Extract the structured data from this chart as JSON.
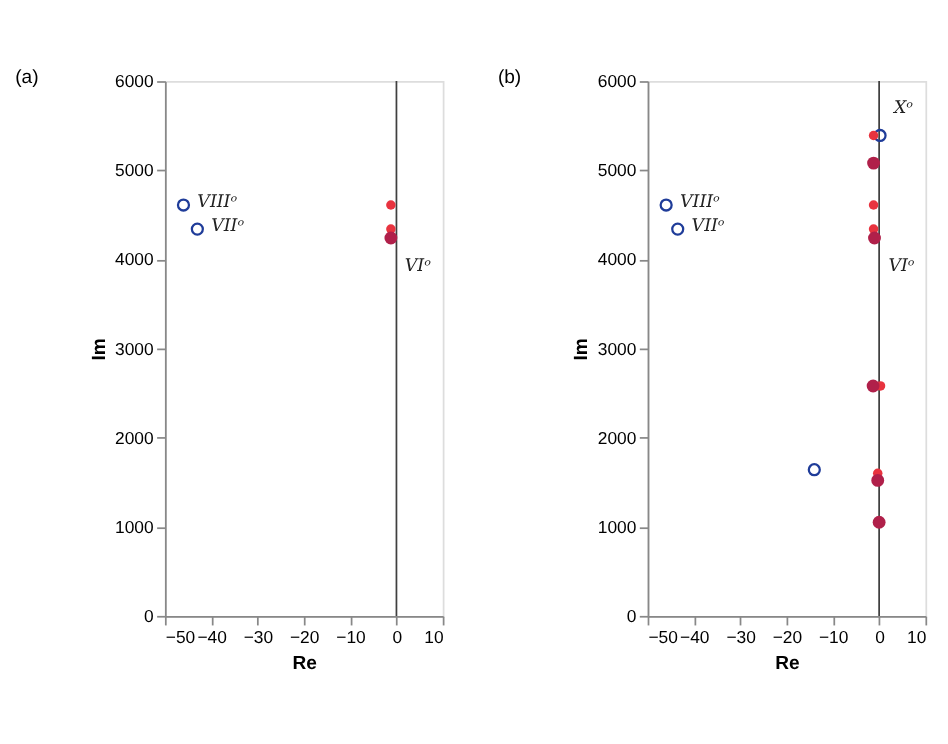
{
  "chart_data": [
    {
      "type": "scatter",
      "title": "(a)",
      "xlabel": "Re",
      "ylabel": "Im",
      "xlim": [
        -50,
        10
      ],
      "xticks": [
        -50,
        -40,
        -30,
        -20,
        -10,
        0,
        10
      ],
      "ylim": [
        0,
        6000
      ],
      "yticks": [
        0,
        1000,
        2000,
        3000,
        4000,
        5000,
        6000
      ],
      "grid": false,
      "ref_lines": [
        {
          "axis": "x",
          "value": 0,
          "color": "#404040"
        }
      ],
      "series": [
        {
          "color": "#1f3c99",
          "x": [
            -46,
            -43
          ],
          "values": [
            4610,
            4340
          ]
        },
        {
          "color": "#e8333f",
          "x": [
            -1.2,
            -1.2
          ],
          "values": [
            4610,
            4340
          ]
        },
        {
          "color": "#b0204a",
          "x": [
            -1.2
          ],
          "values": [
            4240
          ]
        }
      ],
      "annotations": [
        {
          "text": "VIIIᵒ",
          "x": -46,
          "y": 4610
        },
        {
          "text": "VIIᵒ",
          "x": -43,
          "y": 4340
        },
        {
          "text": "VIᵒ",
          "x": -1.2,
          "y": 4240
        }
      ]
    },
    {
      "type": "scatter",
      "title": "(b)",
      "xlabel": "Re",
      "ylabel": "Im",
      "xlim": [
        -50,
        10
      ],
      "xticks": [
        -50,
        -40,
        -30,
        -20,
        -10,
        0,
        10
      ],
      "ylim": [
        0,
        6000
      ],
      "yticks": [
        0,
        1000,
        2000,
        3000,
        4000,
        5000,
        6000
      ],
      "grid": false,
      "ref_lines": [
        {
          "axis": "x",
          "value": 0,
          "color": "#404040"
        }
      ],
      "series": [
        {
          "color": "#1f3c99",
          "x": [
            -46,
            -43.5,
            -14,
            0.2
          ],
          "values": [
            4610,
            4340,
            1640,
            5390
          ]
        },
        {
          "color": "#e8333f",
          "x": [
            -1.2,
            -1.2,
            -1.2,
            0.3,
            -0.3
          ],
          "values": [
            5390,
            4610,
            4340,
            2580,
            1600
          ]
        },
        {
          "color": "#b0204a",
          "x": [
            -1.2,
            -1,
            -1.3,
            -0.3,
            0
          ],
          "values": [
            5080,
            4240,
            2580,
            1520,
            1050
          ]
        }
      ],
      "annotations": [
        {
          "text": "VIIIᵒ",
          "x": -46,
          "y": 4610
        },
        {
          "text": "VIIᵒ",
          "x": -43.5,
          "y": 4340
        },
        {
          "text": "Xᵒ",
          "x": 0.2,
          "y": 5390
        },
        {
          "text": "VIᵒ",
          "x": -1,
          "y": 4240
        }
      ]
    }
  ]
}
